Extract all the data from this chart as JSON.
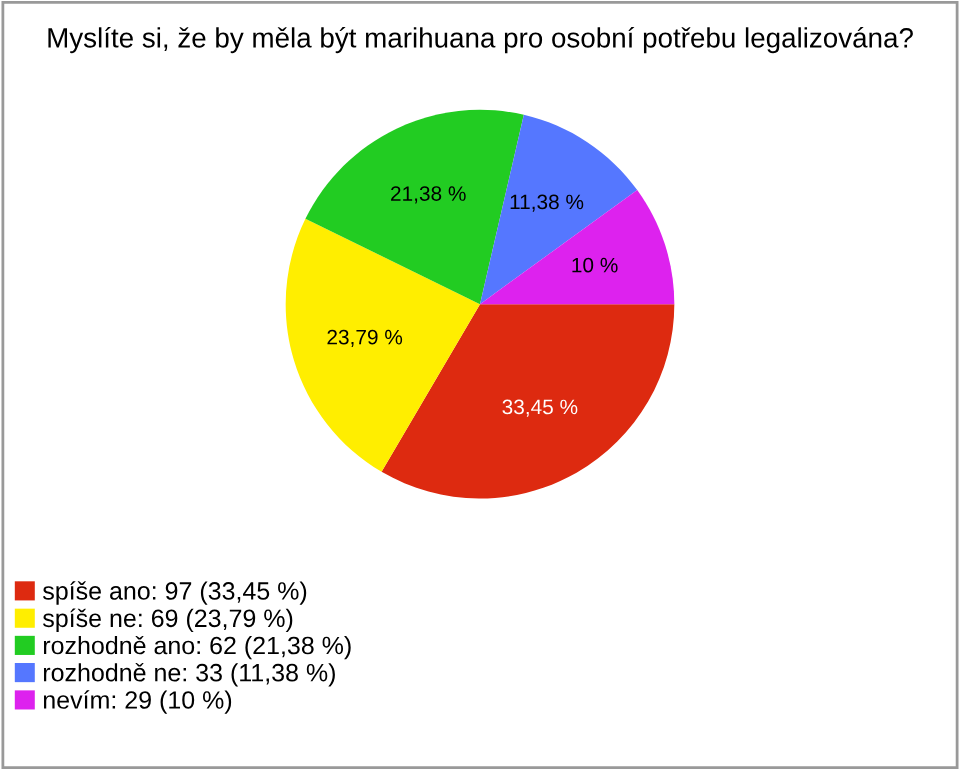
{
  "chart_data": {
    "type": "pie",
    "title": "Myslíte si, že by měla být marihuana pro osobní potřebu legalizována?",
    "categories": [
      "spíše ano: 97 (33,45 %)",
      "spíše ne: 69 (23,79 %)",
      "rozhodně ano: 62 (21,38 %)",
      "rozhodně ne: 33 (11,38 %)",
      "nevím: 29 (10 %)"
    ],
    "values": [
      33.45,
      23.79,
      21.38,
      11.38,
      10
    ],
    "value_labels": [
      "33,45 %",
      "23,79 %",
      "21,38 %",
      "11,38 %",
      "10 %"
    ],
    "colors": [
      "#dd2a10",
      "#ffee00",
      "#22cc22",
      "#5577ff",
      "#dd22ee"
    ],
    "legend": "bottom left"
  }
}
